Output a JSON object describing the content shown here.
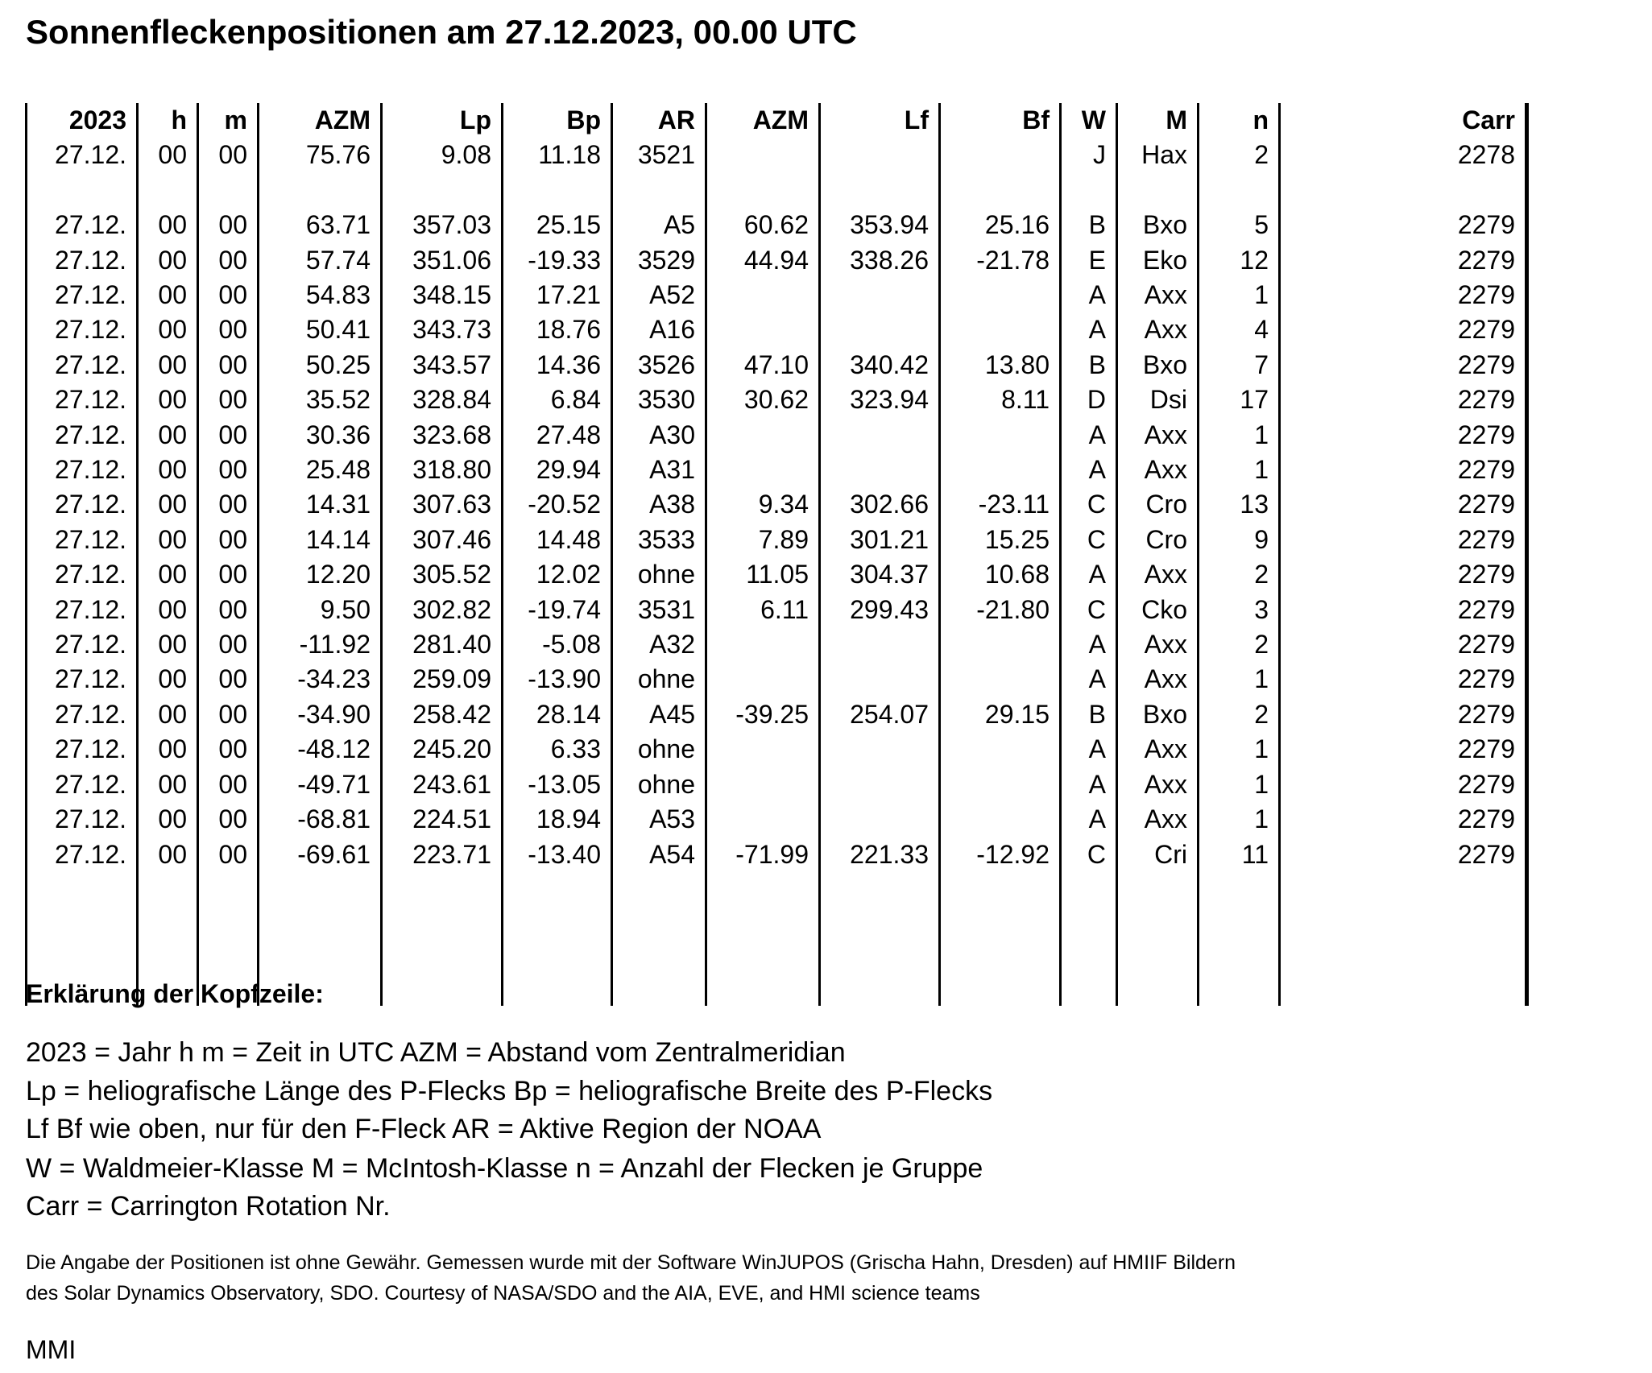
{
  "title": "Sonnenfleckenpositionen am 27.12.2023, 00.00 UTC",
  "table": {
    "headers": [
      "2023",
      "h",
      "m",
      "AZM",
      "Lp",
      "Bp",
      "AR",
      "AZM",
      "Lf",
      "Bf",
      "W",
      "M",
      "n",
      "Carr"
    ],
    "rows": [
      [
        "27.12.",
        "00",
        "00",
        "75.76",
        "9.08",
        "11.18",
        "3521",
        "",
        "",
        "",
        "J",
        "Hax",
        "2",
        "2278"
      ],
      null,
      [
        "27.12.",
        "00",
        "00",
        "63.71",
        "357.03",
        "25.15",
        "A5",
        "60.62",
        "353.94",
        "25.16",
        "B",
        "Bxo",
        "5",
        "2279"
      ],
      [
        "27.12.",
        "00",
        "00",
        "57.74",
        "351.06",
        "-19.33",
        "3529",
        "44.94",
        "338.26",
        "-21.78",
        "E",
        "Eko",
        "12",
        "2279"
      ],
      [
        "27.12.",
        "00",
        "00",
        "54.83",
        "348.15",
        "17.21",
        "A52",
        "",
        "",
        "",
        "A",
        "Axx",
        "1",
        "2279"
      ],
      [
        "27.12.",
        "00",
        "00",
        "50.41",
        "343.73",
        "18.76",
        "A16",
        "",
        "",
        "",
        "A",
        "Axx",
        "4",
        "2279"
      ],
      [
        "27.12.",
        "00",
        "00",
        "50.25",
        "343.57",
        "14.36",
        "3526",
        "47.10",
        "340.42",
        "13.80",
        "B",
        "Bxo",
        "7",
        "2279"
      ],
      [
        "27.12.",
        "00",
        "00",
        "35.52",
        "328.84",
        "6.84",
        "3530",
        "30.62",
        "323.94",
        "8.11",
        "D",
        "Dsi",
        "17",
        "2279"
      ],
      [
        "27.12.",
        "00",
        "00",
        "30.36",
        "323.68",
        "27.48",
        "A30",
        "",
        "",
        "",
        "A",
        "Axx",
        "1",
        "2279"
      ],
      [
        "27.12.",
        "00",
        "00",
        "25.48",
        "318.80",
        "29.94",
        "A31",
        "",
        "",
        "",
        "A",
        "Axx",
        "1",
        "2279"
      ],
      [
        "27.12.",
        "00",
        "00",
        "14.31",
        "307.63",
        "-20.52",
        "A38",
        "9.34",
        "302.66",
        "-23.11",
        "C",
        "Cro",
        "13",
        "2279"
      ],
      [
        "27.12.",
        "00",
        "00",
        "14.14",
        "307.46",
        "14.48",
        "3533",
        "7.89",
        "301.21",
        "15.25",
        "C",
        "Cro",
        "9",
        "2279"
      ],
      [
        "27.12.",
        "00",
        "00",
        "12.20",
        "305.52",
        "12.02",
        "ohne",
        "11.05",
        "304.37",
        "10.68",
        "A",
        "Axx",
        "2",
        "2279"
      ],
      [
        "27.12.",
        "00",
        "00",
        "9.50",
        "302.82",
        "-19.74",
        "3531",
        "6.11",
        "299.43",
        "-21.80",
        "C",
        "Cko",
        "3",
        "2279"
      ],
      [
        "27.12.",
        "00",
        "00",
        "-11.92",
        "281.40",
        "-5.08",
        "A32",
        "",
        "",
        "",
        "A",
        "Axx",
        "2",
        "2279"
      ],
      [
        "27.12.",
        "00",
        "00",
        "-34.23",
        "259.09",
        "-13.90",
        "ohne",
        "",
        "",
        "",
        "A",
        "Axx",
        "1",
        "2279"
      ],
      [
        "27.12.",
        "00",
        "00",
        "-34.90",
        "258.42",
        "28.14",
        "A45",
        "-39.25",
        "254.07",
        "29.15",
        "B",
        "Bxo",
        "2",
        "2279"
      ],
      [
        "27.12.",
        "00",
        "00",
        "-48.12",
        "245.20",
        "6.33",
        "ohne",
        "",
        "",
        "",
        "A",
        "Axx",
        "1",
        "2279"
      ],
      [
        "27.12.",
        "00",
        "00",
        "-49.71",
        "243.61",
        "-13.05",
        "ohne",
        "",
        "",
        "",
        "A",
        "Axx",
        "1",
        "2279"
      ],
      [
        "27.12.",
        "00",
        "00",
        "-68.81",
        "224.51",
        "18.94",
        "A53",
        "",
        "",
        "",
        "A",
        "Axx",
        "1",
        "2279"
      ],
      [
        "27.12.",
        "00",
        "00",
        "-69.61",
        "223.71",
        "-13.40",
        "A54",
        "-71.99",
        "221.33",
        "-12.92",
        "C",
        "Cri",
        "11",
        "2279"
      ]
    ]
  },
  "explanation": {
    "heading": "Erklärung der Kopfzeile:",
    "lines": [
      "2023 = Jahr   h m = Zeit in UTC   AZM = Abstand vom Zentralmeridian",
      "Lp = heliografische Länge des P-Flecks   Bp = heliografische Breite des P-Flecks",
      "Lf   Bf wie oben, nur für den F-Fleck   AR = Aktive Region der NOAA",
      "W = Waldmeier-Klasse   M = McIntosh-Klasse   n = Anzahl der Flecken je Gruppe",
      "Carr = Carrington Rotation Nr."
    ]
  },
  "notes": [
    "Die Angabe der Positionen ist ohne Gewähr. Gemessen wurde mit der Software WinJUPOS (Grischa Hahn, Dresden) auf HMIIF Bildern",
    "des Solar Dynamics Observatory, SDO. Courtesy of NASA/SDO and the AIA, EVE, and HMI science teams"
  ],
  "signature": "MMI"
}
